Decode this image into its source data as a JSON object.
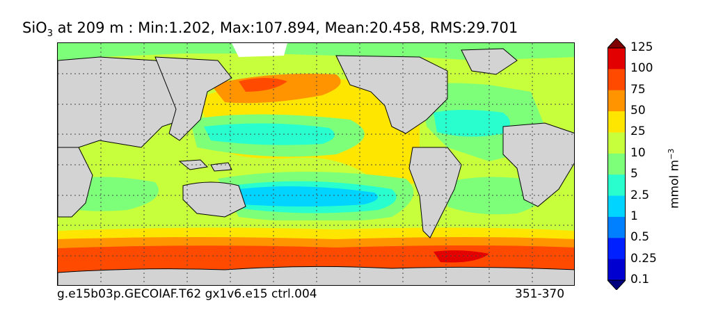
{
  "title": {
    "variable": "SiO",
    "subscript": "3",
    "rest": " at 209 m : Min:1.202, Max:107.894, Mean:20.458, RMS:29.701"
  },
  "footer": {
    "case": "g.e15b03p.GECOIAF.T62 gx1v6.e15 ctrl.004",
    "years": "351-370"
  },
  "colorbar": {
    "units_main": "mmol m",
    "units_exp": "−3",
    "levels": [
      "0.1",
      "0.25",
      "0.5",
      "1",
      "2.5",
      "5",
      "10",
      "25",
      "50",
      "75",
      "100",
      "125"
    ],
    "colors": [
      "#00007f",
      "#0000d0",
      "#0020ff",
      "#0080ff",
      "#00d4ff",
      "#29ffce",
      "#7dff7a",
      "#c8ff3c",
      "#ffe600",
      "#ff9400",
      "#ff4a00",
      "#e30000",
      "#7f0000"
    ],
    "extend": "both"
  },
  "map": {
    "land_color": "#d3d3d3",
    "gridlines": "dotted",
    "contour_lines": true
  }
}
